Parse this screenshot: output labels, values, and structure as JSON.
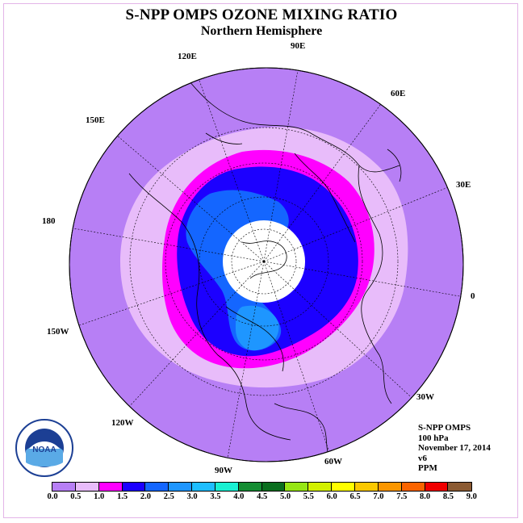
{
  "title": "S-NPP OMPS OZONE MIXING RATIO",
  "subtitle": "Northern Hemisphere",
  "longitude_labels": [
    "90E",
    "60E",
    "30E",
    "0",
    "30W",
    "60W",
    "90W",
    "120W",
    "150W",
    "180",
    "150E",
    "120E"
  ],
  "info": {
    "instrument": "S-NPP OMPS",
    "level": "100 hPa",
    "date": "November 17, 2014",
    "version": "v6",
    "units": "PPM"
  },
  "logo_text": "NOAA",
  "colorbar": {
    "ticks": [
      "0.0",
      "0.5",
      "1.0",
      "1.5",
      "2.0",
      "2.5",
      "3.0",
      "3.5",
      "4.0",
      "4.5",
      "5.0",
      "5.5",
      "6.0",
      "6.5",
      "7.0",
      "7.5",
      "8.0",
      "8.5",
      "9.0"
    ],
    "colors": [
      "#b77ff5",
      "#e8bcfa",
      "#ff00ff",
      "#1c00ff",
      "#1466ff",
      "#1e96ff",
      "#1ebeff",
      "#19f0d2",
      "#148c32",
      "#0a6e1e",
      "#96e614",
      "#d2f000",
      "#ffff00",
      "#fac800",
      "#fa9600",
      "#fa6400",
      "#f00000",
      "#8b5a32"
    ]
  },
  "map": {
    "projection": "north polar stereographic",
    "contour_levels_shown": [
      "0.0-0.5",
      "0.5-1.0",
      "1.0-1.5",
      "1.5-2.0",
      "2.0-2.5",
      "2.5-3.0"
    ],
    "no_data_region": "polar night (white disk near pole)"
  }
}
